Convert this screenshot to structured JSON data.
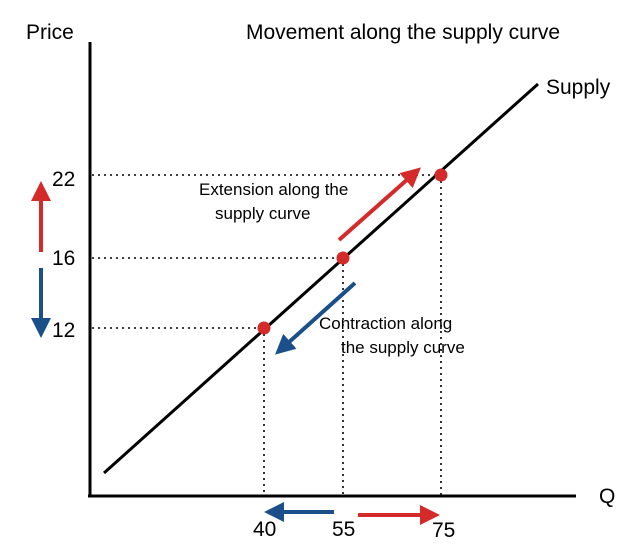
{
  "title": "Movement along the supply curve",
  "axes": {
    "y_label": "Price",
    "x_label": "Q"
  },
  "curve": {
    "name": "Supply"
  },
  "price_ticks": [
    "22",
    "16",
    "12"
  ],
  "quantity_ticks": [
    "40",
    "55",
    "75"
  ],
  "points": [
    {
      "quantity": 40,
      "price": 12
    },
    {
      "quantity": 55,
      "price": 16
    },
    {
      "quantity": 75,
      "price": 22
    }
  ],
  "annotations": {
    "extension_line1": "Extension along the",
    "extension_line2": "supply curve",
    "contraction_line1": "Contraction along",
    "contraction_line2": "the supply curve"
  },
  "colors": {
    "extension": "#d42a2a",
    "contraction": "#1a4f8a",
    "point": "#d42a2a",
    "curve": "#000000"
  }
}
